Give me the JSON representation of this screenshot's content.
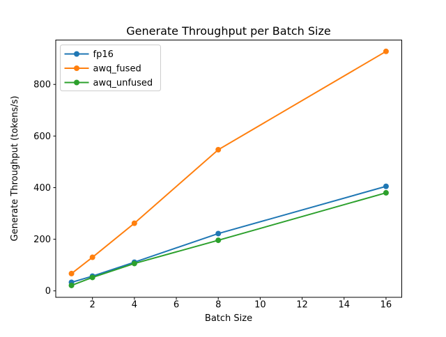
{
  "chart_data": {
    "type": "line",
    "title": "Generate Throughput per Batch Size",
    "xlabel": "Batch Size",
    "ylabel": "Generate Throughput (tokens/s)",
    "x": [
      1,
      2,
      4,
      8,
      16
    ],
    "series": [
      {
        "name": "fp16",
        "color": "#1f77b4",
        "values": [
          33,
          57,
          111,
          222,
          405
        ]
      },
      {
        "name": "awq_fused",
        "color": "#ff7f0e",
        "values": [
          67,
          130,
          262,
          547,
          928
        ]
      },
      {
        "name": "awq_unfused",
        "color": "#2ca02c",
        "values": [
          21,
          52,
          106,
          196,
          380
        ]
      }
    ],
    "xlim": [
      0.25,
      16.75
    ],
    "ylim": [
      -25,
      972
    ],
    "xticks": [
      2,
      4,
      6,
      8,
      10,
      12,
      14,
      16
    ],
    "yticks": [
      0,
      200,
      400,
      600,
      800
    ],
    "grid": false,
    "legend_position": "upper left",
    "marker": "o",
    "line_width": 2,
    "marker_radius": 4,
    "axis_color": "#000000",
    "legend_border_color": "#cccccc",
    "background_color": "#ffffff"
  }
}
